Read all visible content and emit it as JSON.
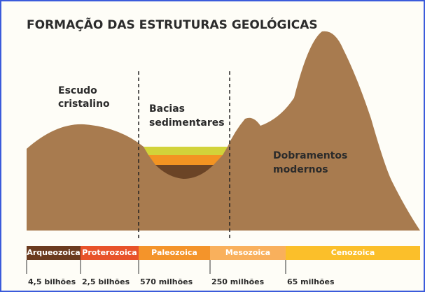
{
  "title": "FORMAÇÃO DAS ESTRUTURAS GEOLÓGICAS",
  "regions": [
    {
      "lines": [
        "Escudo",
        "cristalino"
      ]
    },
    {
      "lines": [
        "Bacias",
        "sedimentares"
      ]
    },
    {
      "lines": [
        "Dobramentos",
        "modernos"
      ]
    }
  ],
  "eras": [
    "Arqueozoica",
    "Proterozoica",
    "Paleozoica",
    "Mesozoica",
    "Cenozoica"
  ],
  "ages": [
    "4,5 bilhões",
    "2,5 bilhões",
    "570 milhões",
    "250 milhões",
    "65 milhões"
  ]
}
